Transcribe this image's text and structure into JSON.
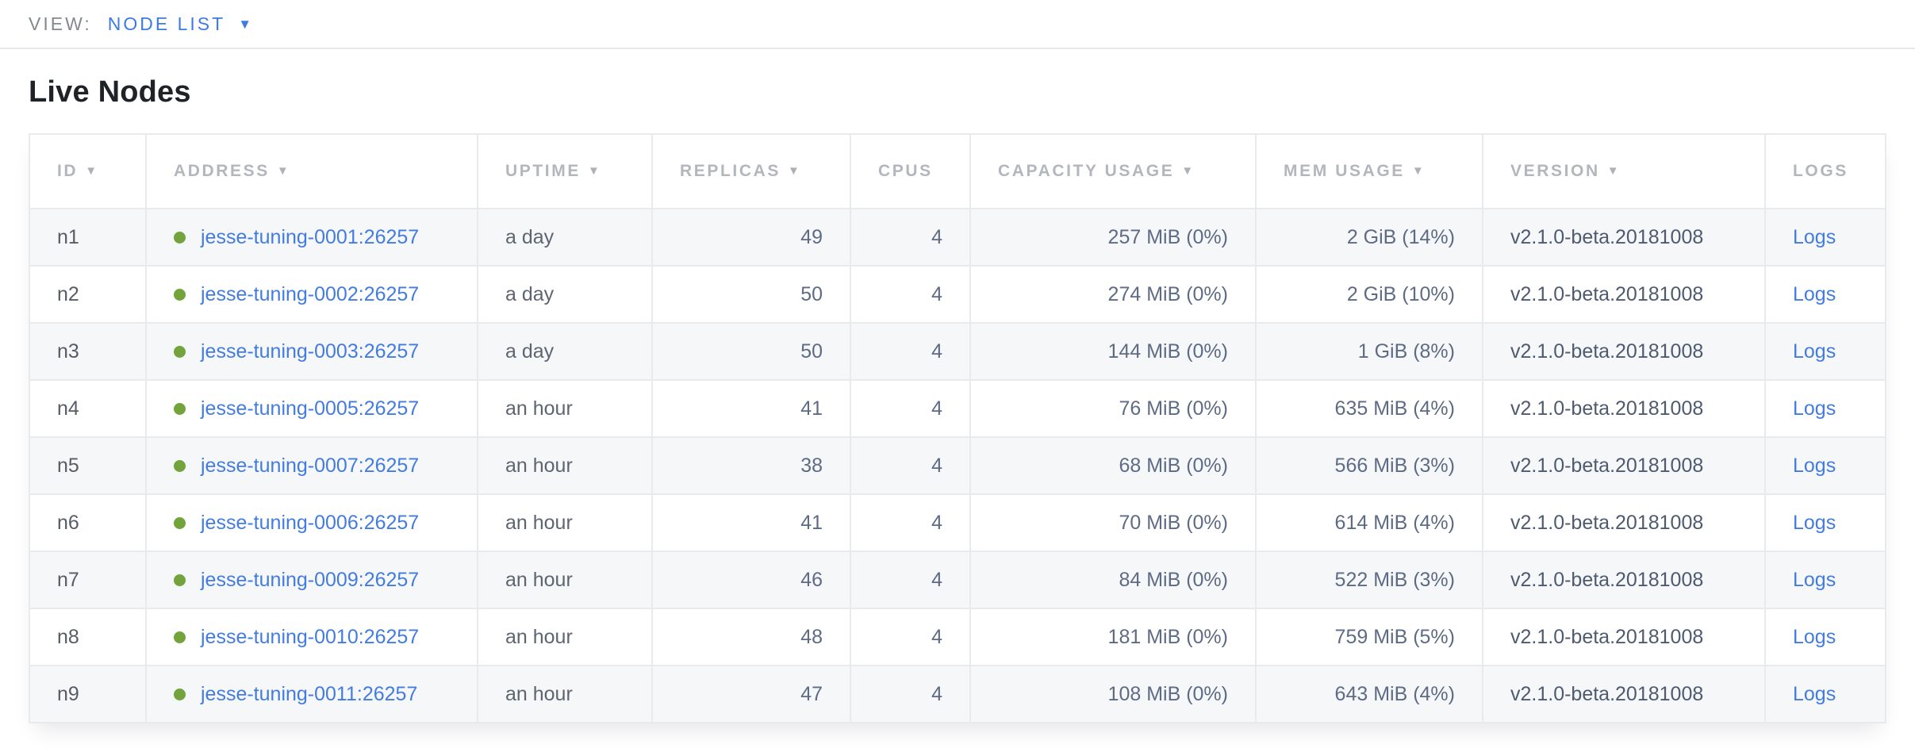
{
  "toolbar": {
    "view_label": "VIEW:",
    "view_value": "NODE LIST",
    "caret_icon": "▼"
  },
  "page": {
    "title": "Live Nodes"
  },
  "colors": {
    "link_blue": "#437ce0",
    "topbar_blue": "#3d7be2",
    "healthy_green": "#72a43b",
    "header_gray": "#b3b6bc",
    "stripe_gray": "#f6f7f8"
  },
  "table": {
    "sort_icon": "▼",
    "columns": [
      {
        "key": "id",
        "label": "ID",
        "sorted": true
      },
      {
        "key": "address",
        "label": "ADDRESS",
        "sorted": true
      },
      {
        "key": "uptime",
        "label": "UPTIME",
        "sorted": true
      },
      {
        "key": "replicas",
        "label": "REPLICAS",
        "sorted": true
      },
      {
        "key": "cpus",
        "label": "CPUS",
        "sorted": false
      },
      {
        "key": "capacity",
        "label": "CAPACITY USAGE",
        "sorted": true
      },
      {
        "key": "mem",
        "label": "MEM USAGE",
        "sorted": true
      },
      {
        "key": "version",
        "label": "VERSION",
        "sorted": true
      },
      {
        "key": "logs",
        "label": "LOGS",
        "sorted": false
      }
    ],
    "rows": [
      {
        "id": "n1",
        "address": "jesse-tuning-0001:26257",
        "status": "healthy",
        "uptime": "a day",
        "replicas": "49",
        "cpus": "4",
        "capacity": "257 MiB (0%)",
        "mem": "2 GiB (14%)",
        "version": "v2.1.0-beta.20181008",
        "logs": "Logs"
      },
      {
        "id": "n2",
        "address": "jesse-tuning-0002:26257",
        "status": "healthy",
        "uptime": "a day",
        "replicas": "50",
        "cpus": "4",
        "capacity": "274 MiB (0%)",
        "mem": "2 GiB (10%)",
        "version": "v2.1.0-beta.20181008",
        "logs": "Logs"
      },
      {
        "id": "n3",
        "address": "jesse-tuning-0003:26257",
        "status": "healthy",
        "uptime": "a day",
        "replicas": "50",
        "cpus": "4",
        "capacity": "144 MiB (0%)",
        "mem": "1 GiB (8%)",
        "version": "v2.1.0-beta.20181008",
        "logs": "Logs"
      },
      {
        "id": "n4",
        "address": "jesse-tuning-0005:26257",
        "status": "healthy",
        "uptime": "an hour",
        "replicas": "41",
        "cpus": "4",
        "capacity": "76 MiB (0%)",
        "mem": "635 MiB (4%)",
        "version": "v2.1.0-beta.20181008",
        "logs": "Logs"
      },
      {
        "id": "n5",
        "address": "jesse-tuning-0007:26257",
        "status": "healthy",
        "uptime": "an hour",
        "replicas": "38",
        "cpus": "4",
        "capacity": "68 MiB (0%)",
        "mem": "566 MiB (3%)",
        "version": "v2.1.0-beta.20181008",
        "logs": "Logs"
      },
      {
        "id": "n6",
        "address": "jesse-tuning-0006:26257",
        "status": "healthy",
        "uptime": "an hour",
        "replicas": "41",
        "cpus": "4",
        "capacity": "70 MiB (0%)",
        "mem": "614 MiB (4%)",
        "version": "v2.1.0-beta.20181008",
        "logs": "Logs"
      },
      {
        "id": "n7",
        "address": "jesse-tuning-0009:26257",
        "status": "healthy",
        "uptime": "an hour",
        "replicas": "46",
        "cpus": "4",
        "capacity": "84 MiB (0%)",
        "mem": "522 MiB (3%)",
        "version": "v2.1.0-beta.20181008",
        "logs": "Logs"
      },
      {
        "id": "n8",
        "address": "jesse-tuning-0010:26257",
        "status": "healthy",
        "uptime": "an hour",
        "replicas": "48",
        "cpus": "4",
        "capacity": "181 MiB (0%)",
        "mem": "759 MiB (5%)",
        "version": "v2.1.0-beta.20181008",
        "logs": "Logs"
      },
      {
        "id": "n9",
        "address": "jesse-tuning-0011:26257",
        "status": "healthy",
        "uptime": "an hour",
        "replicas": "47",
        "cpus": "4",
        "capacity": "108 MiB (0%)",
        "mem": "643 MiB (4%)",
        "version": "v2.1.0-beta.20181008",
        "logs": "Logs"
      }
    ]
  }
}
